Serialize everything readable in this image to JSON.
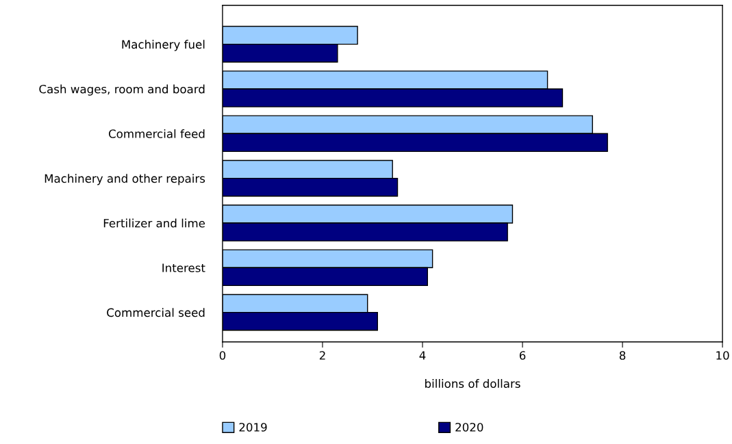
{
  "chart_data": {
    "type": "bar",
    "orientation": "horizontal",
    "categories": [
      "Machinery fuel",
      "Cash wages, room and board",
      "Commercial feed",
      "Machinery and other repairs",
      "Fertilizer and lime",
      "Interest",
      "Commercial seed"
    ],
    "series": [
      {
        "name": "2019",
        "color": "#99ccff",
        "values": [
          2.7,
          6.5,
          7.4,
          3.4,
          5.8,
          4.2,
          2.9
        ]
      },
      {
        "name": "2020",
        "color": "#000080",
        "values": [
          2.3,
          6.8,
          7.7,
          3.5,
          5.7,
          4.1,
          3.1
        ]
      }
    ],
    "xlabel": "billions of dollars",
    "xlim": [
      0,
      10
    ],
    "xticks": [
      0,
      2,
      4,
      6,
      8,
      10
    ],
    "grid": false,
    "legend": "bottom"
  }
}
